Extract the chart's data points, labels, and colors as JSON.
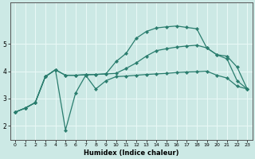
{
  "xlabel": "Humidex (Indice chaleur)",
  "bg_color": "#cce9e5",
  "grid_color": "#e8f8f6",
  "line_color": "#2a7d6e",
  "x": [
    0,
    1,
    2,
    3,
    4,
    5,
    6,
    7,
    8,
    9,
    10,
    11,
    12,
    13,
    14,
    15,
    16,
    17,
    18,
    19,
    20,
    21,
    22,
    23
  ],
  "line1": [
    2.5,
    2.65,
    2.85,
    3.8,
    4.05,
    1.85,
    3.2,
    3.85,
    3.35,
    3.65,
    3.8,
    3.82,
    3.85,
    3.88,
    3.9,
    3.92,
    3.95,
    3.97,
    3.98,
    4.0,
    3.85,
    3.75,
    3.45,
    3.35
  ],
  "line2": [
    2.5,
    2.65,
    2.85,
    3.8,
    4.05,
    3.85,
    3.85,
    3.87,
    3.88,
    3.9,
    3.92,
    4.1,
    4.3,
    4.55,
    4.75,
    4.82,
    4.88,
    4.92,
    4.95,
    4.85,
    4.6,
    4.55,
    4.15,
    3.35
  ],
  "line3": [
    2.5,
    2.65,
    2.85,
    3.8,
    4.05,
    3.85,
    3.85,
    3.87,
    3.88,
    3.9,
    4.35,
    4.65,
    5.2,
    5.45,
    5.58,
    5.62,
    5.65,
    5.6,
    5.55,
    4.85,
    4.6,
    4.45,
    3.65,
    3.35
  ],
  "ylim": [
    1.5,
    6.5
  ],
  "xlim_min": -0.5,
  "xlim_max": 23.5,
  "yticks": [
    2,
    3,
    4,
    5
  ],
  "xticks": [
    0,
    1,
    2,
    3,
    4,
    5,
    6,
    7,
    8,
    9,
    10,
    11,
    12,
    13,
    14,
    15,
    16,
    17,
    18,
    19,
    20,
    21,
    22,
    23
  ]
}
